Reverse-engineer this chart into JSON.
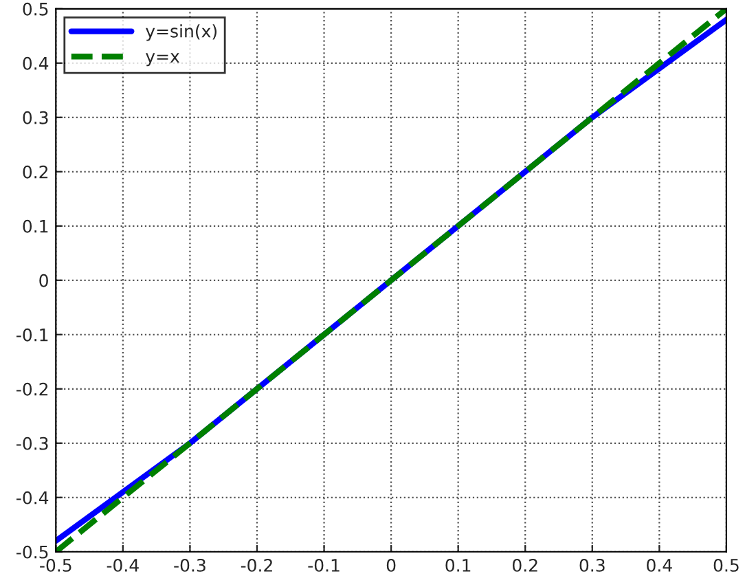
{
  "chart_data": {
    "type": "line",
    "x": [
      -0.5,
      -0.4,
      -0.3,
      -0.2,
      -0.1,
      0,
      0.1,
      0.2,
      0.3,
      0.4,
      0.5
    ],
    "series": [
      {
        "name": "y=sin(x)",
        "color": "#0000ff",
        "line_style": "solid",
        "values": [
          -0.48,
          -0.39,
          -0.3,
          -0.2,
          -0.1,
          0,
          0.1,
          0.2,
          0.3,
          0.39,
          0.48
        ]
      },
      {
        "name": "y=x",
        "color": "#008000",
        "line_style": "dashed",
        "values": [
          -0.5,
          -0.4,
          -0.3,
          -0.2,
          -0.1,
          0,
          0.1,
          0.2,
          0.3,
          0.4,
          0.5
        ]
      }
    ],
    "xlim": [
      -0.5,
      0.5
    ],
    "ylim": [
      -0.5,
      0.5
    ],
    "xticks": [
      -0.5,
      -0.4,
      -0.3,
      -0.2,
      -0.1,
      0,
      0.1,
      0.2,
      0.3,
      0.4,
      0.5
    ],
    "yticks": [
      -0.5,
      -0.4,
      -0.3,
      -0.2,
      -0.1,
      0,
      0.1,
      0.2,
      0.3,
      0.4,
      0.5
    ],
    "grid": true,
    "legend": "top left"
  }
}
